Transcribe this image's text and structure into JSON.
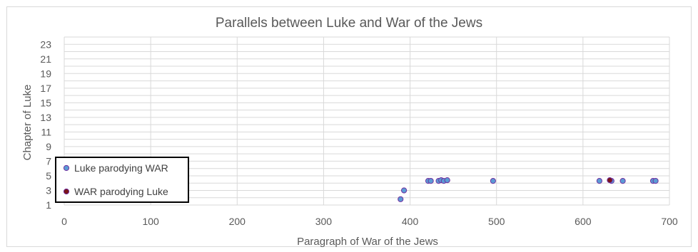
{
  "chart_data": {
    "type": "scatter",
    "title": "Parallels between Luke and War of the Jews",
    "xlabel": "Paragraph of War of the Jews",
    "ylabel": "Chapter of Luke",
    "xlim": [
      0,
      700
    ],
    "ylim": [
      1,
      24
    ],
    "xticks": [
      0,
      100,
      200,
      300,
      400,
      500,
      600,
      700
    ],
    "yticks": [
      1,
      3,
      5,
      7,
      9,
      11,
      13,
      15,
      17,
      19,
      21,
      23
    ],
    "grid": true,
    "legend_position": "bottom-left",
    "series": [
      {
        "name": "Luke parodying WAR",
        "color": "#5b9bd5",
        "edge_color": "#7030a0",
        "points": [
          {
            "x": 389,
            "y": 1.8
          },
          {
            "x": 393,
            "y": 3.0
          },
          {
            "x": 421,
            "y": 4.3
          },
          {
            "x": 424,
            "y": 4.3
          },
          {
            "x": 433,
            "y": 4.3
          },
          {
            "x": 436,
            "y": 4.4
          },
          {
            "x": 439,
            "y": 4.3
          },
          {
            "x": 443,
            "y": 4.4
          },
          {
            "x": 496,
            "y": 4.3
          },
          {
            "x": 619,
            "y": 4.3
          },
          {
            "x": 633,
            "y": 4.3
          },
          {
            "x": 646,
            "y": 4.3
          },
          {
            "x": 681,
            "y": 4.3
          },
          {
            "x": 684,
            "y": 4.3
          }
        ]
      },
      {
        "name": "WAR parodying Luke",
        "color": "#7b1418",
        "edge_color": "#7030a0",
        "points": [
          {
            "x": 631,
            "y": 4.4
          }
        ]
      }
    ]
  }
}
